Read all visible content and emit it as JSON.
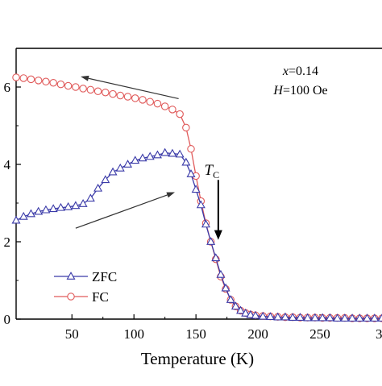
{
  "chart_data": {
    "type": "line",
    "title": "",
    "xlabel": "Temperature (K)",
    "ylabel": "",
    "xlim": [
      5,
      300
    ],
    "ylim": [
      0,
      7
    ],
    "x_ticks": [
      50,
      100,
      150,
      200,
      250
    ],
    "x_tick_labels": [
      "50",
      "100",
      "150",
      "200",
      "250"
    ],
    "x_tick_edge_label": "3",
    "y_ticks": [
      0,
      2,
      4,
      6
    ],
    "y_tick_labels": [
      "0",
      "2",
      "4",
      "6"
    ],
    "legend_position": "bottom-left",
    "annotation_composition": "x=0.14",
    "annotation_field": "H=100 Oe",
    "tc_label": "T",
    "tc_subscript": "C",
    "tc_temperature": 168,
    "tc_arrow_from": 3.6,
    "tc_arrow_to": 2.05,
    "cooling_arrow": {
      "from": [
        136,
        5.7
      ],
      "to": [
        57,
        6.27
      ]
    },
    "warming_arrow": {
      "from": [
        53,
        2.35
      ],
      "to": [
        133,
        3.28
      ]
    },
    "series": [
      {
        "name": "ZFC",
        "color": "#3a3aa8",
        "marker": "triangle",
        "x": [
          5,
          11,
          17,
          23,
          29,
          35,
          41,
          47,
          53,
          59,
          65,
          71,
          77,
          83,
          89,
          95,
          101,
          107,
          113,
          119,
          125,
          131,
          137,
          142,
          146,
          150,
          154,
          158,
          162,
          166,
          170,
          174,
          178,
          182,
          186,
          190,
          194,
          198,
          204,
          210,
          216,
          222,
          228,
          234,
          240,
          246,
          252,
          258,
          264,
          270,
          276,
          282,
          288,
          294,
          300
        ],
        "values": [
          2.55,
          2.65,
          2.72,
          2.78,
          2.82,
          2.85,
          2.88,
          2.9,
          2.93,
          2.98,
          3.12,
          3.38,
          3.6,
          3.8,
          3.9,
          4.0,
          4.1,
          4.16,
          4.2,
          4.24,
          4.3,
          4.28,
          4.26,
          4.05,
          3.75,
          3.35,
          2.95,
          2.45,
          2.0,
          1.58,
          1.15,
          0.8,
          0.5,
          0.33,
          0.22,
          0.15,
          0.11,
          0.09,
          0.07,
          0.06,
          0.05,
          0.05,
          0.04,
          0.04,
          0.03,
          0.03,
          0.03,
          0.03,
          0.02,
          0.02,
          0.02,
          0.02,
          0.02,
          0.02,
          0.02
        ]
      },
      {
        "name": "FC",
        "color": "#e05a5a",
        "marker": "circle",
        "x": [
          5,
          11,
          17,
          23,
          29,
          35,
          41,
          47,
          53,
          59,
          65,
          71,
          77,
          83,
          89,
          95,
          101,
          107,
          113,
          119,
          125,
          131,
          137,
          142,
          146,
          150,
          154,
          158,
          162,
          166,
          170,
          174,
          178,
          182,
          186,
          190,
          194,
          198,
          204,
          210,
          216,
          222,
          228,
          234,
          240,
          246,
          252,
          258,
          264,
          270,
          276,
          282,
          288,
          294,
          300
        ],
        "values": [
          6.25,
          6.23,
          6.2,
          6.17,
          6.14,
          6.11,
          6.07,
          6.03,
          6.0,
          5.96,
          5.93,
          5.89,
          5.86,
          5.82,
          5.78,
          5.75,
          5.71,
          5.67,
          5.62,
          5.57,
          5.5,
          5.42,
          5.3,
          4.95,
          4.4,
          3.7,
          3.05,
          2.48,
          2.0,
          1.55,
          1.1,
          0.78,
          0.5,
          0.33,
          0.22,
          0.16,
          0.12,
          0.1,
          0.08,
          0.07,
          0.06,
          0.05,
          0.05,
          0.04,
          0.04,
          0.04,
          0.03,
          0.03,
          0.03,
          0.03,
          0.02,
          0.02,
          0.02,
          0.02,
          0.02
        ]
      }
    ]
  }
}
